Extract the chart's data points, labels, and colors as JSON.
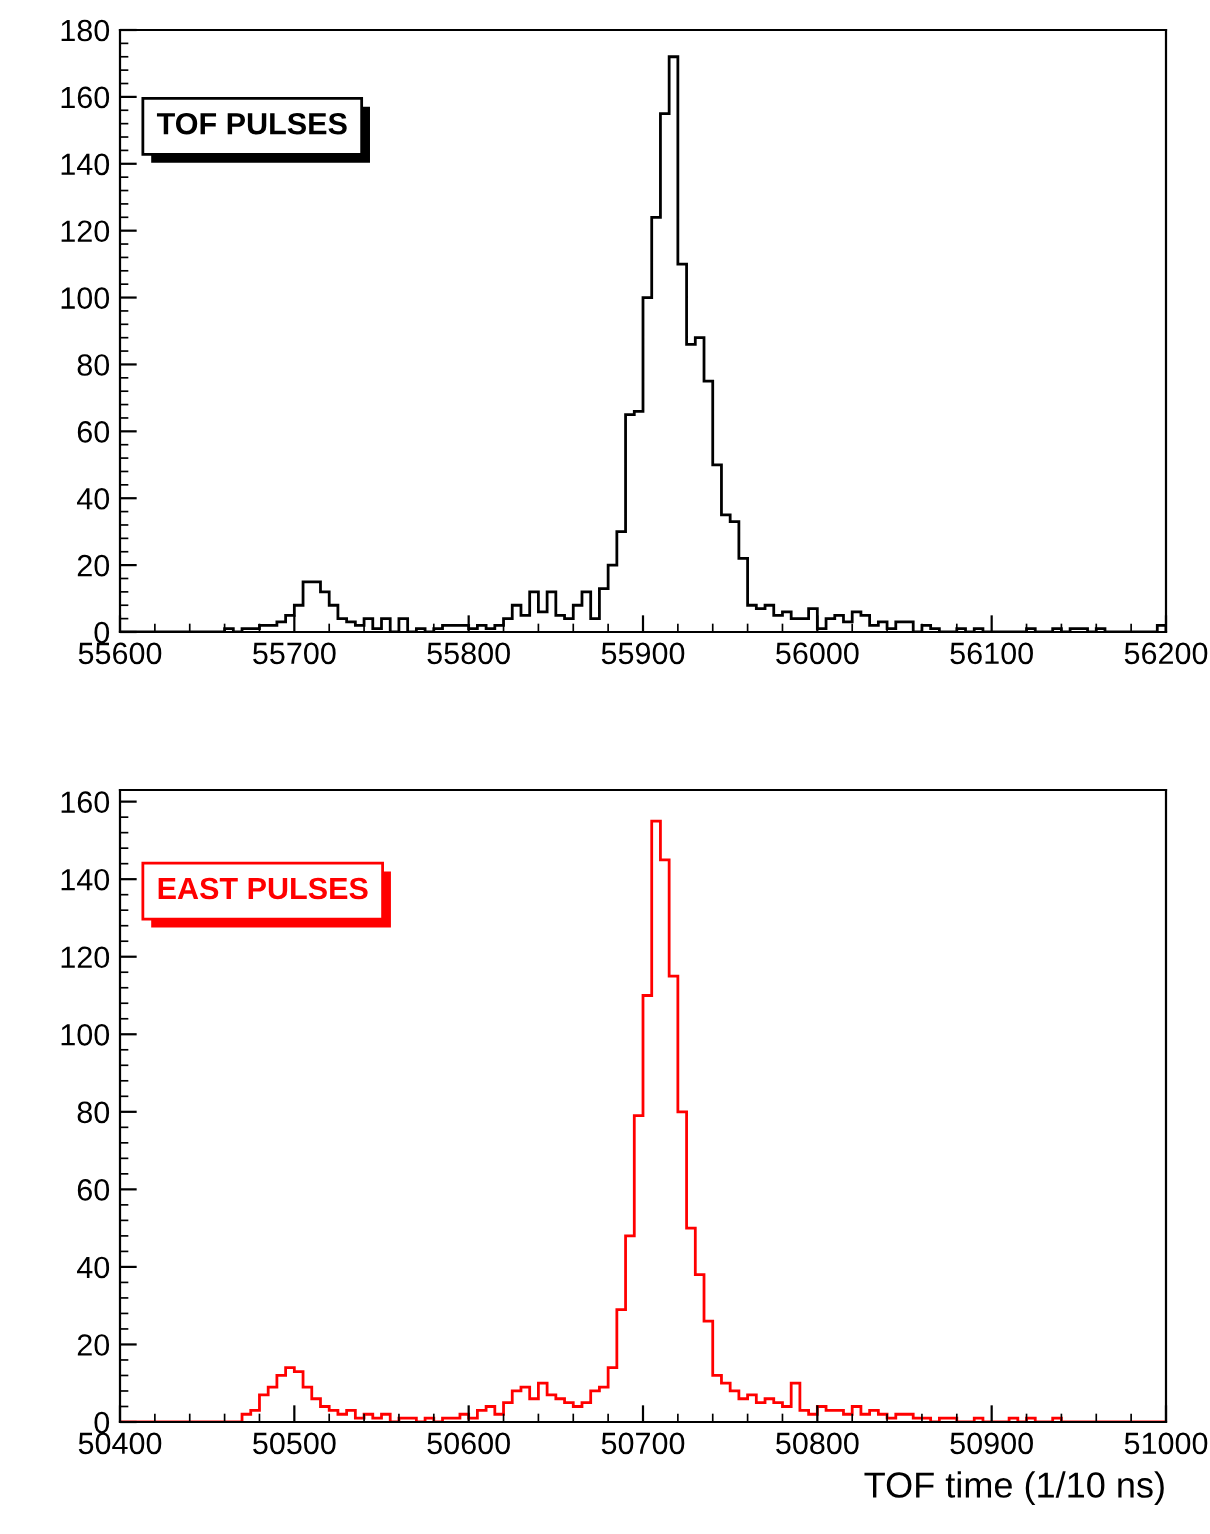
{
  "chart_data": [
    {
      "type": "histogram",
      "annotations": [
        "TOF PULSES"
      ],
      "color": "#000000",
      "bins": [
        55600,
        55605,
        55610,
        55615,
        55620,
        55625,
        55630,
        55635,
        55640,
        55645,
        55650,
        55655,
        55660,
        55665,
        55670,
        55675,
        55680,
        55685,
        55690,
        55695,
        55700,
        55705,
        55710,
        55715,
        55720,
        55725,
        55730,
        55735,
        55740,
        55745,
        55750,
        55755,
        55760,
        55765,
        55770,
        55775,
        55780,
        55785,
        55790,
        55795,
        55800,
        55805,
        55810,
        55815,
        55820,
        55825,
        55830,
        55835,
        55840,
        55845,
        55850,
        55855,
        55860,
        55865,
        55870,
        55875,
        55880,
        55885,
        55890,
        55895,
        55900,
        55905,
        55910,
        55915,
        55920,
        55925,
        55930,
        55935,
        55940,
        55945,
        55950,
        55955,
        55960,
        55965,
        55970,
        55975,
        55980,
        55985,
        55990,
        55995,
        56000,
        56005,
        56010,
        56015,
        56020,
        56025,
        56030,
        56035,
        56040,
        56045,
        56050,
        56055,
        56060,
        56065,
        56070,
        56075,
        56080,
        56085,
        56090,
        56095,
        56100,
        56105,
        56110,
        56115,
        56120,
        56125,
        56130,
        56135,
        56140,
        56145,
        56150,
        56155,
        56160,
        56165,
        56170,
        56175,
        56180,
        56185,
        56190,
        56195,
        56200
      ],
      "values": [
        0,
        0,
        0,
        0,
        0,
        0,
        0,
        0,
        0,
        0,
        0,
        0,
        1,
        0,
        1,
        1,
        2,
        2,
        3,
        5,
        8,
        15,
        15,
        12,
        8,
        4,
        3,
        2,
        4,
        1,
        4,
        0,
        4,
        0,
        1,
        0,
        1,
        2,
        2,
        2,
        1,
        2,
        1,
        2,
        4,
        8,
        5,
        12,
        6,
        12,
        5,
        4,
        8,
        12,
        4,
        13,
        20,
        30,
        65,
        66,
        100,
        124,
        155,
        172,
        110,
        86,
        88,
        75,
        50,
        35,
        33,
        22,
        8,
        7,
        8,
        5,
        6,
        4,
        4,
        7,
        1,
        4,
        5,
        3,
        6,
        5,
        2,
        3,
        1,
        3,
        3,
        0,
        2,
        1,
        0,
        0,
        1,
        0,
        1,
        0,
        0,
        0,
        0,
        0,
        1,
        0,
        0,
        1,
        0,
        1,
        1,
        0,
        1,
        0,
        0,
        0,
        0,
        0,
        0,
        2
      ],
      "xlim": [
        55600,
        56200
      ],
      "xticks": [
        55600,
        55700,
        55800,
        55900,
        56000,
        56100,
        56200
      ],
      "ylim": [
        0,
        180
      ],
      "yticks": [
        0,
        20,
        40,
        60,
        80,
        100,
        120,
        140,
        160,
        180
      ]
    },
    {
      "type": "histogram",
      "annotations": [
        "EAST PULSES"
      ],
      "color": "#ff0000",
      "xlabel": "TOF time (1/10 ns)",
      "bins": [
        50400,
        50405,
        50410,
        50415,
        50420,
        50425,
        50430,
        50435,
        50440,
        50445,
        50450,
        50455,
        50460,
        50465,
        50470,
        50475,
        50480,
        50485,
        50490,
        50495,
        50500,
        50505,
        50510,
        50515,
        50520,
        50525,
        50530,
        50535,
        50540,
        50545,
        50550,
        50555,
        50560,
        50565,
        50570,
        50575,
        50580,
        50585,
        50590,
        50595,
        50600,
        50605,
        50610,
        50615,
        50620,
        50625,
        50630,
        50635,
        50640,
        50645,
        50650,
        50655,
        50660,
        50665,
        50670,
        50675,
        50680,
        50685,
        50690,
        50695,
        50700,
        50705,
        50710,
        50715,
        50720,
        50725,
        50730,
        50735,
        50740,
        50745,
        50750,
        50755,
        50760,
        50765,
        50770,
        50775,
        50780,
        50785,
        50790,
        50795,
        50800,
        50805,
        50810,
        50815,
        50820,
        50825,
        50830,
        50835,
        50840,
        50845,
        50850,
        50855,
        50860,
        50865,
        50870,
        50875,
        50880,
        50885,
        50890,
        50895,
        50900,
        50905,
        50910,
        50915,
        50920,
        50925,
        50930,
        50935,
        50940,
        50945,
        50950,
        50955,
        50960,
        50965,
        50970,
        50975,
        50980,
        50985,
        50990,
        50995,
        51000
      ],
      "values": [
        0,
        0,
        0,
        0,
        0,
        0,
        0,
        0,
        0,
        0,
        0,
        0,
        0,
        0,
        2,
        3,
        7,
        9,
        12,
        14,
        13,
        9,
        6,
        4,
        3,
        2,
        3,
        1,
        2,
        1,
        2,
        0,
        1,
        1,
        0,
        1,
        0,
        1,
        1,
        2,
        1,
        3,
        4,
        2,
        5,
        8,
        9,
        6,
        10,
        7,
        6,
        5,
        4,
        5,
        8,
        9,
        14,
        29,
        48,
        79,
        110,
        155,
        145,
        115,
        80,
        50,
        38,
        26,
        12,
        10,
        8,
        6,
        7,
        5,
        6,
        5,
        4,
        10,
        3,
        2,
        4,
        3,
        3,
        2,
        4,
        2,
        3,
        2,
        1,
        2,
        2,
        1,
        1,
        0,
        1,
        1,
        0,
        0,
        1,
        0,
        0,
        0,
        1,
        0,
        1,
        0,
        0,
        1,
        0,
        0,
        0,
        0,
        0,
        0,
        0,
        0,
        0,
        0,
        0,
        0
      ],
      "xlim": [
        50400,
        51000
      ],
      "xticks": [
        50400,
        50500,
        50600,
        50700,
        50800,
        50900,
        51000
      ],
      "ylim": [
        0,
        163
      ],
      "yticks": [
        0,
        20,
        40,
        60,
        80,
        100,
        120,
        140,
        160
      ]
    }
  ]
}
